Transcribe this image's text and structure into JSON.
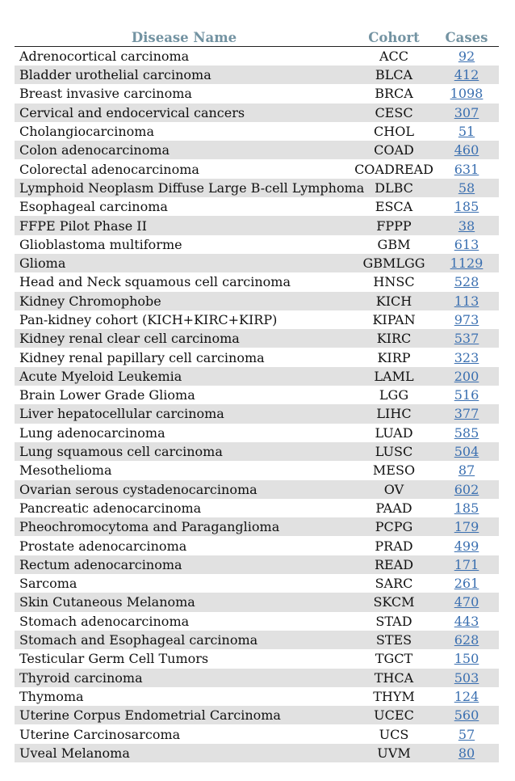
{
  "table": {
    "headers": {
      "name": "Disease Name",
      "cohort": "Cohort",
      "cases": "Cases"
    },
    "rows": [
      {
        "name": "Adrenocortical carcinoma",
        "cohort": "ACC",
        "cases": "92"
      },
      {
        "name": "Bladder urothelial carcinoma",
        "cohort": "BLCA",
        "cases": "412"
      },
      {
        "name": "Breast invasive carcinoma",
        "cohort": "BRCA",
        "cases": "1098"
      },
      {
        "name": "Cervical and endocervical cancers",
        "cohort": "CESC",
        "cases": "307"
      },
      {
        "name": "Cholangiocarcinoma",
        "cohort": "CHOL",
        "cases": "51"
      },
      {
        "name": "Colon adenocarcinoma",
        "cohort": "COAD",
        "cases": "460"
      },
      {
        "name": "Colorectal adenocarcinoma",
        "cohort": "COADREAD",
        "cases": "631"
      },
      {
        "name": "Lymphoid Neoplasm Diffuse Large B-cell Lymphoma",
        "cohort": "DLBC",
        "cases": "58"
      },
      {
        "name": "Esophageal carcinoma",
        "cohort": "ESCA",
        "cases": "185"
      },
      {
        "name": "FFPE Pilot Phase II",
        "cohort": "FPPP",
        "cases": "38"
      },
      {
        "name": "Glioblastoma multiforme",
        "cohort": "GBM",
        "cases": "613"
      },
      {
        "name": "Glioma",
        "cohort": "GBMLGG",
        "cases": "1129"
      },
      {
        "name": "Head and Neck squamous cell carcinoma",
        "cohort": "HNSC",
        "cases": "528"
      },
      {
        "name": "Kidney Chromophobe",
        "cohort": "KICH",
        "cases": "113"
      },
      {
        "name": "Pan-kidney cohort (KICH+KIRC+KIRP)",
        "cohort": "KIPAN",
        "cases": "973"
      },
      {
        "name": "Kidney renal clear cell carcinoma",
        "cohort": "KIRC",
        "cases": "537"
      },
      {
        "name": "Kidney renal papillary cell carcinoma",
        "cohort": "KIRP",
        "cases": "323"
      },
      {
        "name": "Acute Myeloid Leukemia",
        "cohort": "LAML",
        "cases": "200"
      },
      {
        "name": "Brain Lower Grade Glioma",
        "cohort": "LGG",
        "cases": "516"
      },
      {
        "name": "Liver hepatocellular carcinoma",
        "cohort": "LIHC",
        "cases": "377"
      },
      {
        "name": "Lung adenocarcinoma",
        "cohort": "LUAD",
        "cases": "585"
      },
      {
        "name": "Lung squamous cell carcinoma",
        "cohort": "LUSC",
        "cases": "504"
      },
      {
        "name": "Mesothelioma",
        "cohort": "MESO",
        "cases": "87"
      },
      {
        "name": "Ovarian serous cystadenocarcinoma",
        "cohort": "OV",
        "cases": "602"
      },
      {
        "name": "Pancreatic adenocarcinoma",
        "cohort": "PAAD",
        "cases": "185"
      },
      {
        "name": "Pheochromocytoma and Paraganglioma",
        "cohort": "PCPG",
        "cases": "179"
      },
      {
        "name": "Prostate adenocarcinoma",
        "cohort": "PRAD",
        "cases": "499"
      },
      {
        "name": "Rectum adenocarcinoma",
        "cohort": "READ",
        "cases": "171"
      },
      {
        "name": "Sarcoma",
        "cohort": "SARC",
        "cases": "261"
      },
      {
        "name": "Skin Cutaneous Melanoma",
        "cohort": "SKCM",
        "cases": "470"
      },
      {
        "name": "Stomach adenocarcinoma",
        "cohort": "STAD",
        "cases": "443"
      },
      {
        "name": "Stomach and Esophageal carcinoma",
        "cohort": "STES",
        "cases": "628"
      },
      {
        "name": "Testicular Germ Cell Tumors",
        "cohort": "TGCT",
        "cases": "150"
      },
      {
        "name": "Thyroid carcinoma",
        "cohort": "THCA",
        "cases": "503"
      },
      {
        "name": "Thymoma",
        "cohort": "THYM",
        "cases": "124"
      },
      {
        "name": "Uterine Corpus Endometrial Carcinoma",
        "cohort": "UCEC",
        "cases": "560"
      },
      {
        "name": "Uterine Carcinosarcoma",
        "cohort": "UCS",
        "cases": "57"
      },
      {
        "name": "Uveal Melanoma",
        "cohort": "UVM",
        "cases": "80"
      }
    ]
  }
}
